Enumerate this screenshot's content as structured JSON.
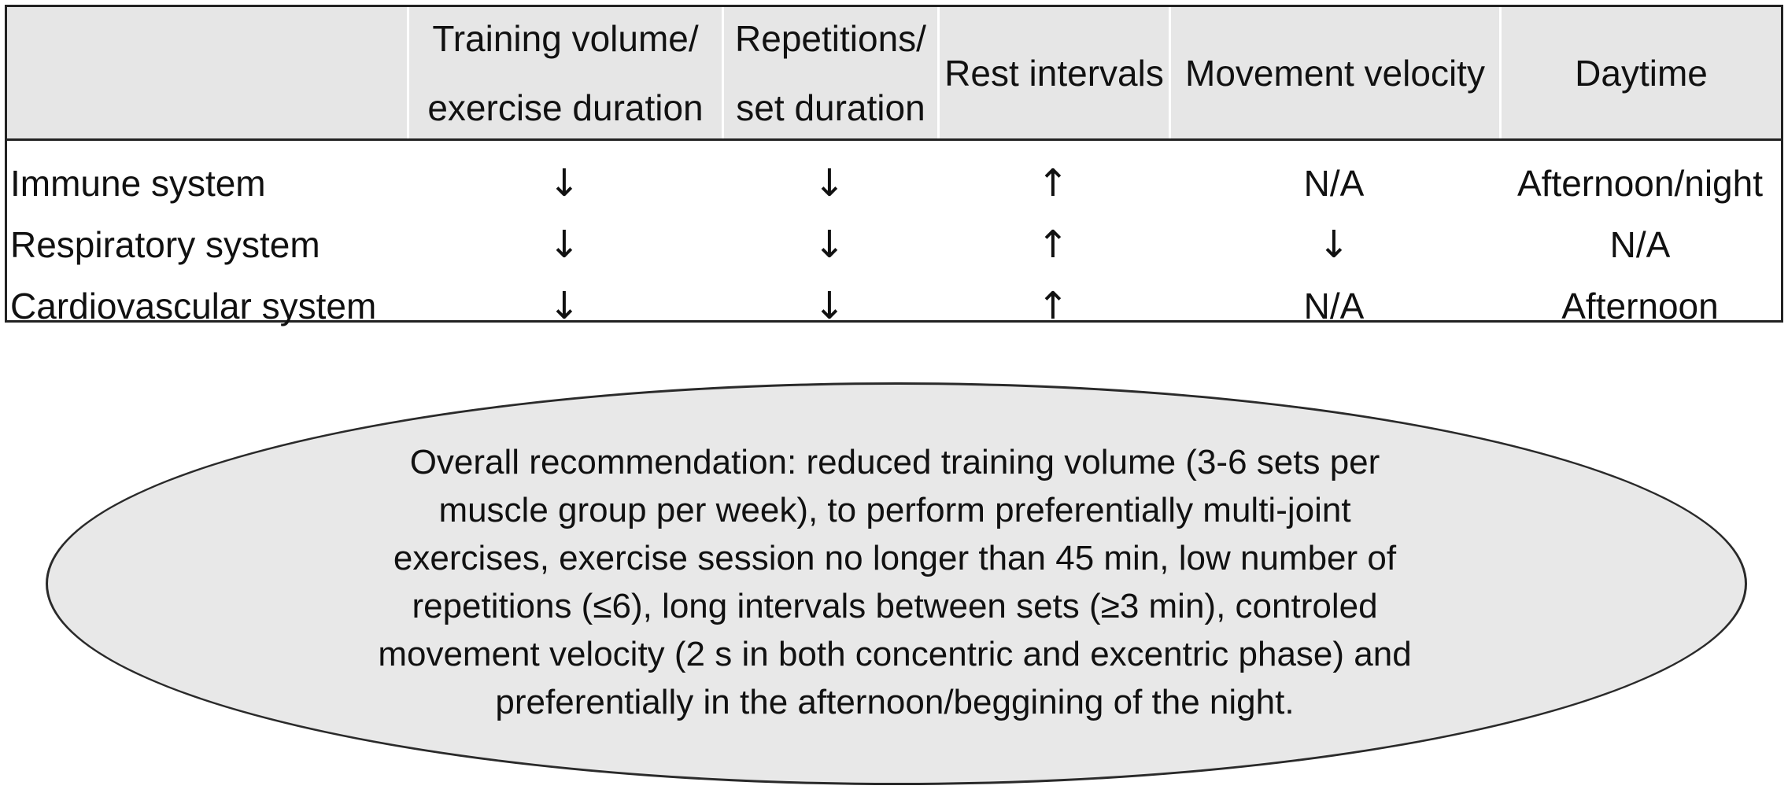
{
  "table": {
    "headers": [
      "",
      "Training volume/\nexercise duration",
      "Repetitions/\nset duration",
      "Rest intervals",
      "Movement velocity",
      "Daytime"
    ],
    "rows": [
      {
        "label": "Immune system",
        "volume": "↓",
        "repetitions": "↓",
        "rest": "↑",
        "velocity": "N/A",
        "daytime": "Afternoon/night"
      },
      {
        "label": "Respiratory system",
        "volume": "↓",
        "repetitions": "↓",
        "rest": "↑",
        "velocity": "↓",
        "daytime": "N/A"
      },
      {
        "label": "Cardiovascular system",
        "volume": "↓",
        "repetitions": "↓",
        "rest": "↑",
        "velocity": "N/A",
        "daytime": "Afternoon"
      }
    ]
  },
  "recommendation": {
    "lines": [
      "Overall recommendation: reduced training volume (3-6 sets per",
      "muscle group per week), to perform preferentially multi-joint",
      "exercises, exercise session no longer than 45 min, low number of",
      "repetitions (≤6), long intervals between sets (≥3 min), controled",
      "movement velocity (2 s in both concentric and excentric phase) and",
      "preferentially in the afternoon/beggining of the night."
    ]
  },
  "colors": {
    "header_background": "#e6e6e6",
    "ellipse_fill": "#e8e8e8",
    "border": "#222222"
  }
}
